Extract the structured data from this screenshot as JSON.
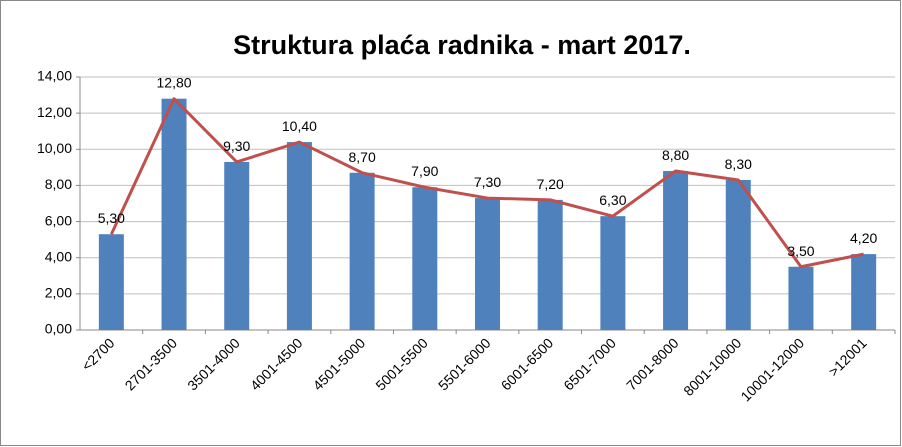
{
  "chart_data": {
    "type": "combo",
    "title": "Struktura plaća radnika - mart 2017.",
    "categories": [
      "<2700",
      "2701-3500",
      "3501-4000",
      "4001-4500",
      "4501-5000",
      "5001-5500",
      "5501-6000",
      "6001-6500",
      "6501-7000",
      "7001-8000",
      "8001-10000",
      "10001-12000",
      ">12001"
    ],
    "values": [
      5.3,
      12.8,
      9.3,
      10.4,
      8.7,
      7.9,
      7.3,
      7.2,
      6.3,
      8.8,
      8.3,
      3.5,
      4.2
    ],
    "value_labels": [
      "5,30",
      "12,80",
      "9,30",
      "10,40",
      "8,70",
      "7,90",
      "7,30",
      "7,20",
      "6,30",
      "8,80",
      "8,30",
      "3,50",
      "4,20"
    ],
    "color": "#4f81bd",
    "line_color": "#c0504d",
    "ylim": [
      0,
      14
    ],
    "yticks": [
      {
        "value": 0,
        "label": "0,00"
      },
      {
        "value": 2,
        "label": "2,00"
      },
      {
        "value": 4,
        "label": "4,00"
      },
      {
        "value": 6,
        "label": "6,00"
      },
      {
        "value": 8,
        "label": "8,00"
      },
      {
        "value": 10,
        "label": "10,00"
      },
      {
        "value": 12,
        "label": "12,00"
      },
      {
        "value": 14,
        "label": "14,00"
      }
    ],
    "grid": true
  }
}
